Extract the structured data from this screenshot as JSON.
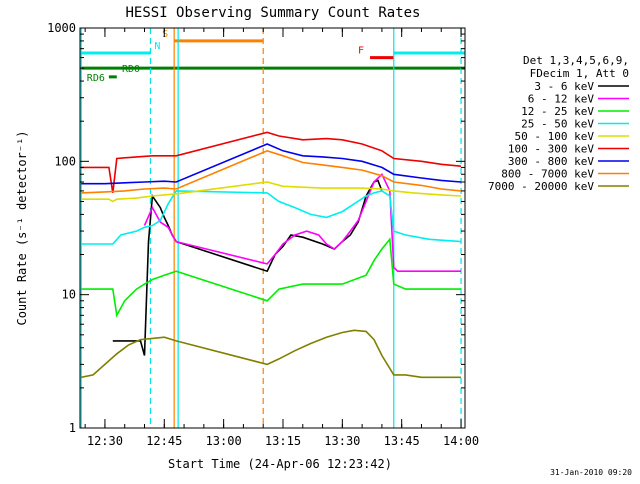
{
  "chart_data": {
    "type": "line",
    "title": "HESSI Observing Summary Count Rates",
    "xlabel": "Start Time (24-Apr-06 12:23:42)",
    "ylabel": "Count Rate (s⁻¹ detector⁻¹)",
    "yscale": "log",
    "ylim": [
      1,
      1000
    ],
    "y_ticks": [
      "1",
      "10",
      "100",
      "1000"
    ],
    "xlim": [
      "12:23:42",
      "14:01:00"
    ],
    "x_ticks": [
      "12:30",
      "12:45",
      "13:00",
      "13:15",
      "13:30",
      "13:45",
      "14:00"
    ],
    "timestamp": "31-Jan-2010 09:20",
    "legend_header": [
      "Det 1,3,4,5,6,9,",
      "FDecim 1, Att 0"
    ],
    "series": [
      {
        "name": "3 - 6 keV",
        "color": "#000000",
        "x": [
          "12:32",
          "12:39",
          "12:40",
          "12:41",
          "12:42",
          "12:44",
          "12:45",
          "12:46",
          "12:47",
          "12:48",
          "13:11",
          "13:13",
          "13:15",
          "13:17",
          "13:20",
          "13:25",
          "13:28",
          "13:30",
          "13:32",
          "13:34",
          "13:36",
          "13:38",
          "13:39",
          "13:40"
        ],
        "values": [
          4.5,
          4.5,
          3.5,
          25,
          55,
          45,
          38,
          33,
          28,
          25,
          15,
          20,
          23,
          28,
          27,
          24,
          22,
          25,
          28,
          35,
          55,
          70,
          72,
          60
        ]
      },
      {
        "name": "6 - 12 keV",
        "color": "#ff00ff",
        "x": [
          "12:40",
          "12:42",
          "12:44",
          "12:46",
          "12:47",
          "12:48",
          "13:11",
          "13:13",
          "13:15",
          "13:18",
          "13:21",
          "13:24",
          "13:26",
          "13:28",
          "13:30",
          "13:32",
          "13:34",
          "13:36",
          "13:38",
          "13:40",
          "13:42",
          "13:43",
          "13:44",
          "13:50",
          "13:55",
          "14:00"
        ],
        "values": [
          33,
          45,
          35,
          32,
          28,
          25,
          17,
          20,
          24,
          28,
          30,
          28,
          24,
          22,
          25,
          30,
          36,
          50,
          70,
          80,
          60,
          16,
          15,
          15,
          15,
          15
        ]
      },
      {
        "name": "12 - 25 keV",
        "color": "#00ee00",
        "x": [
          "12:24",
          "12:30",
          "12:32",
          "12:33",
          "12:35",
          "12:38",
          "12:40",
          "12:42",
          "12:45",
          "12:48",
          "13:11",
          "13:14",
          "13:20",
          "13:30",
          "13:36",
          "13:38",
          "13:40",
          "13:42",
          "13:43",
          "13:46",
          "13:52",
          "14:00"
        ],
        "values": [
          11,
          11,
          11,
          7,
          9,
          11,
          12,
          13,
          14,
          15,
          9,
          11,
          12,
          12,
          14,
          18,
          22,
          26,
          12,
          11,
          11,
          11
        ]
      },
      {
        "name": "25 - 50 keV",
        "color": "#00eeee",
        "x": [
          "12:24",
          "12:30",
          "12:32",
          "12:34",
          "12:38",
          "12:40",
          "12:42",
          "12:44",
          "12:46",
          "12:48",
          "13:11",
          "13:14",
          "13:18",
          "13:22",
          "13:26",
          "13:30",
          "13:33",
          "13:36",
          "13:38",
          "13:40",
          "13:42",
          "13:43",
          "13:46",
          "13:52",
          "14:00"
        ],
        "values": [
          24,
          24,
          24,
          28,
          30,
          32,
          33,
          36,
          48,
          60,
          58,
          50,
          45,
          40,
          38,
          42,
          48,
          55,
          58,
          60,
          55,
          30,
          28,
          26,
          25
        ]
      },
      {
        "name": "50 - 100 keV",
        "color": "#dddd00",
        "x": [
          "12:24",
          "12:31",
          "12:32",
          "12:33",
          "12:38",
          "12:42",
          "12:45",
          "12:48",
          "13:11",
          "13:15",
          "13:20",
          "13:25",
          "13:30",
          "13:35",
          "13:40",
          "13:43",
          "13:48",
          "13:55",
          "14:00"
        ],
        "values": [
          52,
          52,
          50,
          52,
          53,
          55,
          56,
          57,
          70,
          65,
          64,
          63,
          63,
          63,
          62,
          60,
          58,
          56,
          55
        ]
      },
      {
        "name": "100 - 300 keV",
        "color": "#ee0000",
        "x": [
          "12:24",
          "12:31",
          "12:32",
          "12:33",
          "12:38",
          "12:42",
          "12:45",
          "12:48",
          "13:11",
          "13:14",
          "13:20",
          "13:26",
          "13:30",
          "13:35",
          "13:40",
          "13:43",
          "13:50",
          "13:55",
          "14:00"
        ],
        "values": [
          90,
          90,
          58,
          105,
          108,
          110,
          110,
          110,
          165,
          155,
          145,
          148,
          145,
          135,
          120,
          105,
          100,
          95,
          92
        ]
      },
      {
        "name": "300 - 800 keV",
        "color": "#0000ee",
        "x": [
          "12:24",
          "12:30",
          "12:35",
          "12:40",
          "12:45",
          "12:48",
          "13:11",
          "13:15",
          "13:20",
          "13:25",
          "13:30",
          "13:35",
          "13:40",
          "13:43",
          "13:50",
          "13:55",
          "14:00"
        ],
        "values": [
          68,
          68,
          69,
          70,
          71,
          70,
          135,
          120,
          110,
          108,
          105,
          100,
          90,
          80,
          75,
          72,
          70
        ]
      },
      {
        "name": "800 - 7000 keV",
        "color": "#ff8000",
        "x": [
          "12:24",
          "12:30",
          "12:35",
          "12:40",
          "12:45",
          "12:48",
          "13:11",
          "13:15",
          "13:20",
          "13:25",
          "13:30",
          "13:35",
          "13:40",
          "13:43",
          "13:50",
          "13:55",
          "14:00"
        ],
        "values": [
          58,
          59,
          60,
          62,
          63,
          62,
          120,
          110,
          98,
          94,
          90,
          86,
          78,
          70,
          66,
          62,
          60
        ]
      },
      {
        "name": "7000 - 20000 keV",
        "color": "#808000",
        "x": [
          "12:24",
          "12:27",
          "12:30",
          "12:33",
          "12:36",
          "12:39",
          "12:42",
          "12:45",
          "12:48",
          "13:11",
          "13:14",
          "13:18",
          "13:22",
          "13:26",
          "13:30",
          "13:33",
          "13:36",
          "13:38",
          "13:40",
          "13:43",
          "13:46",
          "13:50",
          "13:55",
          "14:00"
        ],
        "values": [
          2.4,
          2.5,
          3,
          3.6,
          4.2,
          4.6,
          4.7,
          4.8,
          4.5,
          3.0,
          3.3,
          3.8,
          4.3,
          4.8,
          5.2,
          5.4,
          5.3,
          4.6,
          3.5,
          2.5,
          2.5,
          2.4,
          2.4,
          2.4
        ]
      }
    ],
    "flags": [
      {
        "label": "N",
        "color": "#00eeee",
        "start": "12:23:42",
        "end": "12:41:30",
        "level": 650
      },
      {
        "label": "N",
        "color": "#00eeee",
        "start": "13:43:00",
        "end": "14:01:00",
        "level": 650
      },
      {
        "label": "S",
        "color": "#ff8000",
        "start": "12:47:30",
        "end": "13:10:00",
        "level": 800
      },
      {
        "label": "F",
        "color": "#ee0000",
        "start": "13:37:00",
        "end": "13:43:00",
        "level": 600
      },
      {
        "label": "RD0",
        "color": "#008000",
        "start": "12:23:42",
        "end": "14:01:00",
        "level": 500
      },
      {
        "label": "RD6",
        "color": "#008000",
        "start": "12:31:00",
        "end": "12:33:00",
        "level": 430
      }
    ],
    "night_boundaries": [
      "12:24:00",
      "12:41:30",
      "12:48:30",
      "13:43:00",
      "14:00:00"
    ],
    "saa_boundaries": [
      "12:47:30",
      "13:10:00"
    ]
  }
}
